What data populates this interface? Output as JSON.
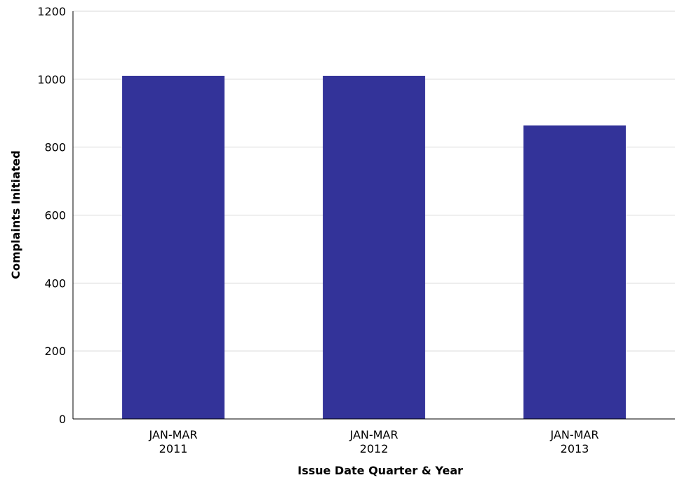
{
  "chart_data": {
    "type": "bar",
    "categories": [
      {
        "line1": "JAN-MAR",
        "line2": "2011"
      },
      {
        "line1": "JAN-MAR",
        "line2": "2012"
      },
      {
        "line1": "JAN-MAR",
        "line2": "2013"
      }
    ],
    "values": [
      1010,
      1010,
      864
    ],
    "xlabel": "Issue Date Quarter & Year",
    "ylabel": "Complaints Initiated",
    "ylim": [
      0,
      1200
    ],
    "yticks": [
      0,
      200,
      400,
      600,
      800,
      1000,
      1200
    ],
    "bar_color": "#333399",
    "grid": true
  }
}
